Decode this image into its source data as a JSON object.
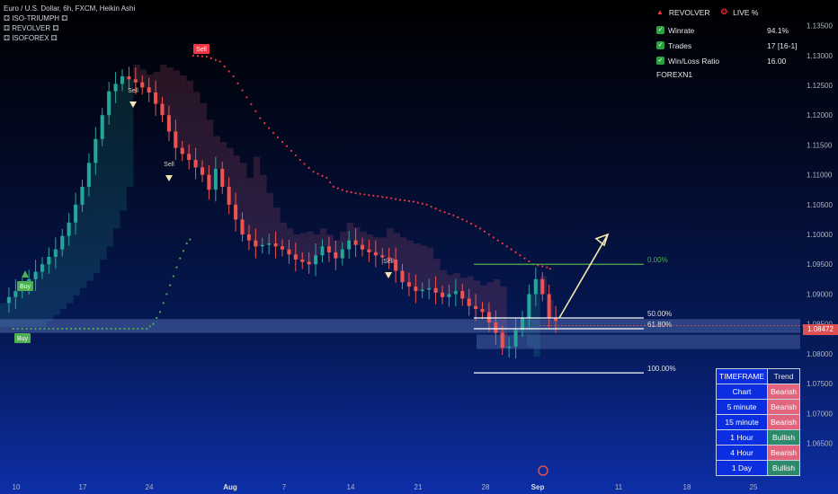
{
  "legend": {
    "symbol": "Euro / U.S. Dollar, 6h, FXCM, Heikin Ashi",
    "indicators": [
      "ISO-TRIUMPH",
      "REVOLVER",
      "ISOFOREX"
    ]
  },
  "stats": {
    "title": "REVOLVER",
    "live": "LIVE %",
    "rows": [
      {
        "label": "Winrate",
        "value": "94.1%"
      },
      {
        "label": "Trades",
        "value": "17 [16-1]"
      },
      {
        "label": "Win/Loss Ratio",
        "value": "16.00"
      }
    ],
    "brand": "FOREXN1"
  },
  "timeframe_table": {
    "headers": [
      "TIMEFRAME",
      "Trend"
    ],
    "rows": [
      {
        "tf": "Chart",
        "trend": "Bearish"
      },
      {
        "tf": "5 minute",
        "trend": "Bearish"
      },
      {
        "tf": "15 minute",
        "trend": "Bearish"
      },
      {
        "tf": "1 Hour",
        "trend": "Bullish"
      },
      {
        "tf": "4 Hour",
        "trend": "Bearish"
      },
      {
        "tf": "1 Day",
        "trend": "Bullish"
      }
    ]
  },
  "current_price": "1.08472",
  "colors": {
    "bull": "#26a69a",
    "bear": "#ef5350",
    "sell": "#f23645",
    "buy": "#4caf50",
    "fib": "#ffffff",
    "fib_top": "#4caf50"
  },
  "chart_data": {
    "type": "candlestick",
    "title": "Euro / U.S. Dollar, 6h, FXCM, Heikin Ashi",
    "y_range": [
      1.0595,
      1.1375
    ],
    "y_ticks": [
      "1.13500",
      "1.13000",
      "1.12500",
      "1.12000",
      "1.11500",
      "1.11000",
      "1.10500",
      "1.10000",
      "1.09500",
      "1.09000",
      "1.08500",
      "1.08000",
      "1.07500",
      "1.07000",
      "1.06500"
    ],
    "x_ticks": [
      "10",
      "17",
      "24",
      "Aug",
      "7",
      "14",
      "21",
      "28",
      "Sep",
      "11",
      "18",
      "25"
    ],
    "close_path": [
      [
        0,
        1.0885
      ],
      [
        4,
        1.0925
      ],
      [
        8,
        1.0975
      ],
      [
        10,
        1.102
      ],
      [
        12,
        1.108
      ],
      [
        14,
        1.116
      ],
      [
        16,
        1.124
      ],
      [
        18,
        1.1265
      ],
      [
        20,
        1.1255
      ],
      [
        22,
        1.1238
      ],
      [
        24,
        1.12
      ],
      [
        26,
        1.1145
      ],
      [
        28,
        1.1125
      ],
      [
        30,
        1.11
      ],
      [
        31,
        1.1075
      ],
      [
        32,
        1.111
      ],
      [
        34,
        1.105
      ],
      [
        36,
        1.1
      ],
      [
        38,
        1.098
      ],
      [
        40,
        1.0985
      ],
      [
        42,
        1.0975
      ],
      [
        44,
        1.0958
      ],
      [
        46,
        1.095
      ],
      [
        48,
        1.098
      ],
      [
        50,
        1.096
      ],
      [
        52,
        1.099
      ],
      [
        54,
        1.0975
      ],
      [
        56,
        1.0965
      ],
      [
        58,
        1.0958
      ],
      [
        60,
        1.092
      ],
      [
        62,
        1.0905
      ],
      [
        64,
        1.091
      ],
      [
        66,
        1.0895
      ],
      [
        68,
        1.0905
      ],
      [
        70,
        1.088
      ],
      [
        72,
        1.087
      ],
      [
        74,
        1.0835
      ],
      [
        75,
        1.081
      ],
      [
        76,
        1.0812
      ],
      [
        77,
        1.084
      ],
      [
        78,
        1.086
      ],
      [
        79,
        1.09
      ],
      [
        80,
        1.0925
      ],
      [
        81,
        1.09
      ],
      [
        82,
        1.086
      ],
      [
        83,
        1.0855
      ]
    ],
    "series": [
      {
        "name": "Sell",
        "values": [
          [
            29,
            1.13
          ],
          [
            31,
            1.1298
          ],
          [
            33,
            1.129
          ],
          [
            35,
            1.1265
          ],
          [
            37,
            1.123
          ],
          [
            39,
            1.1195
          ],
          [
            41,
            1.117
          ],
          [
            43,
            1.1148
          ],
          [
            45,
            1.1125
          ],
          [
            47,
            1.1105
          ],
          [
            49,
            1.1095
          ],
          [
            50,
            1.108
          ],
          [
            52,
            1.1072
          ],
          [
            54,
            1.1068
          ],
          [
            56,
            1.1065
          ],
          [
            58,
            1.1062
          ],
          [
            60,
            1.1058
          ],
          [
            62,
            1.1055
          ],
          [
            64,
            1.105
          ],
          [
            66,
            1.104
          ],
          [
            68,
            1.1032
          ],
          [
            70,
            1.1022
          ],
          [
            72,
            1.101
          ],
          [
            74,
            1.0995
          ],
          [
            76,
            1.098
          ],
          [
            78,
            1.0965
          ],
          [
            80,
            1.095
          ],
          [
            82,
            1.0945
          ],
          [
            83,
            1.094
          ]
        ]
      },
      {
        "name": "Buy",
        "values": [
          [
            2,
            1.0842
          ],
          [
            6,
            1.0842
          ],
          [
            10,
            1.0842
          ],
          [
            14,
            1.0842
          ],
          [
            18,
            1.0842
          ],
          [
            22,
            1.0842
          ],
          [
            23,
            1.085
          ],
          [
            24,
            1.087
          ],
          [
            25,
            1.09
          ],
          [
            26,
            1.093
          ],
          [
            27,
            1.096
          ],
          [
            28,
            1.0985
          ],
          [
            29,
            1.0998
          ]
        ]
      }
    ],
    "signals": [
      {
        "label": "Buy",
        "x": 3,
        "type": "buy"
      },
      {
        "label": "Buy",
        "x": 2,
        "type": "buy"
      },
      {
        "label": "Sell",
        "x": 29,
        "type": "sell"
      },
      {
        "label": "Sell",
        "x": 20,
        "type": "sell"
      },
      {
        "label": "Sell",
        "x": 26,
        "type": "sell"
      },
      {
        "label": "Sell",
        "x": 60,
        "type": "sell"
      }
    ],
    "fibonacci": [
      {
        "label": "0.00%",
        "y": 1.095
      },
      {
        "label": "50.00%",
        "y": 1.086
      },
      {
        "label": "61.80%",
        "y": 1.0842
      },
      {
        "label": "100.00%",
        "y": 1.0768
      }
    ]
  }
}
